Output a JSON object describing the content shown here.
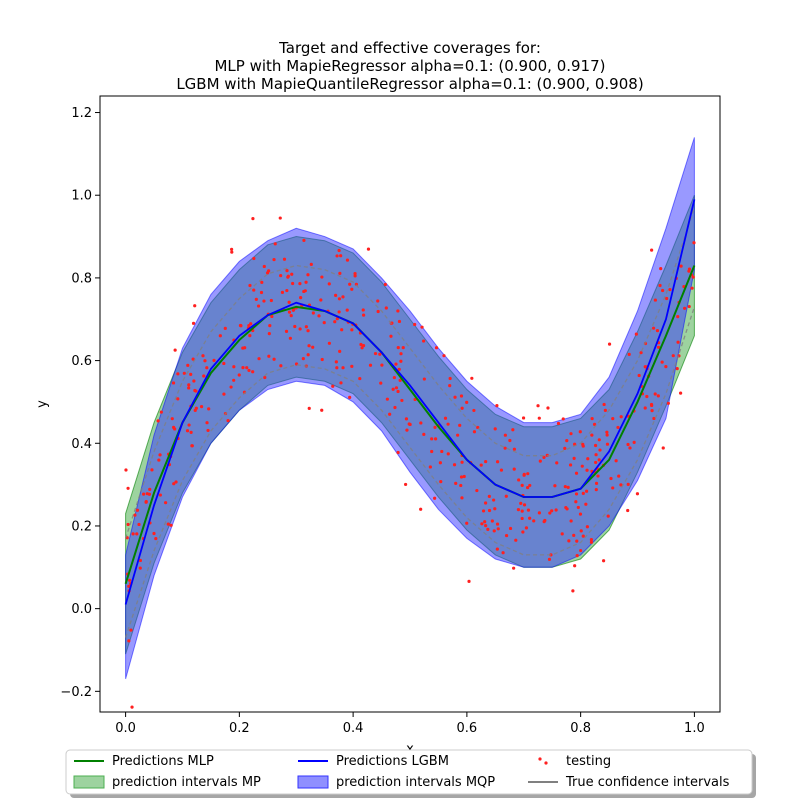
{
  "chart_data": {
    "type": "line",
    "title_lines": [
      "Target and effective coverages for:",
      "MLP with MapieRegressor alpha=0.1: (0.900, 0.917)",
      "LGBM with MapieQuantileRegressor alpha=0.1: (0.900, 0.908)"
    ],
    "xlabel": "x",
    "ylabel": "y",
    "xlim": [
      -0.045,
      1.045
    ],
    "ylim": [
      -0.25,
      1.24
    ],
    "x_ticks": [
      0.0,
      0.2,
      0.4,
      0.6,
      0.8,
      1.0
    ],
    "x_tick_labels": [
      "0.0",
      "0.2",
      "0.4",
      "0.6",
      "0.8",
      "1.0"
    ],
    "y_ticks": [
      -0.2,
      0.0,
      0.2,
      0.4,
      0.6,
      0.8,
      1.0,
      1.2
    ],
    "y_tick_labels": [
      "−0.2",
      "0.0",
      "0.2",
      "0.4",
      "0.6",
      "0.8",
      "1.0",
      "1.2"
    ],
    "grid": false,
    "legend_position": "bottom-center",
    "colors": {
      "mlp": "#008000",
      "lgbm": "#0000ff",
      "mp_band": "#4caf50",
      "mqp_band": "#3333ff",
      "testing": "#ff2020",
      "true_ci": "#808080"
    },
    "legend": [
      {
        "label": "Predictions MLP",
        "kind": "line",
        "color": "#008000"
      },
      {
        "label": "Predictions LGBM",
        "kind": "line",
        "color": "#0000ff"
      },
      {
        "label": "testing",
        "kind": "dots",
        "color": "#ff2020"
      },
      {
        "label": "prediction intervals MP",
        "kind": "patch",
        "color": "#4caf50"
      },
      {
        "label": "prediction intervals MQP",
        "kind": "patch",
        "color": "#3333ff"
      },
      {
        "label": "True confidence intervals",
        "kind": "line",
        "color": "#808080"
      }
    ],
    "series": [
      {
        "name": "Predictions MLP",
        "x": [
          0.0,
          0.05,
          0.1,
          0.15,
          0.2,
          0.25,
          0.3,
          0.35,
          0.4,
          0.45,
          0.5,
          0.55,
          0.6,
          0.65,
          0.7,
          0.75,
          0.8,
          0.85,
          0.9,
          0.95,
          1.0
        ],
        "y": [
          0.06,
          0.28,
          0.45,
          0.57,
          0.65,
          0.71,
          0.73,
          0.72,
          0.69,
          0.62,
          0.53,
          0.44,
          0.36,
          0.3,
          0.27,
          0.27,
          0.29,
          0.36,
          0.5,
          0.66,
          0.83
        ]
      },
      {
        "name": "Predictions LGBM",
        "x": [
          0.0,
          0.05,
          0.1,
          0.15,
          0.2,
          0.25,
          0.3,
          0.35,
          0.4,
          0.45,
          0.5,
          0.55,
          0.6,
          0.65,
          0.7,
          0.75,
          0.8,
          0.85,
          0.9,
          0.95,
          1.0
        ],
        "y": [
          0.01,
          0.25,
          0.45,
          0.58,
          0.66,
          0.71,
          0.74,
          0.72,
          0.69,
          0.62,
          0.54,
          0.45,
          0.36,
          0.3,
          0.27,
          0.27,
          0.29,
          0.38,
          0.52,
          0.7,
          0.99
        ]
      },
      {
        "name": "prediction intervals MP",
        "x": [
          0.0,
          0.05,
          0.1,
          0.15,
          0.2,
          0.25,
          0.3,
          0.35,
          0.4,
          0.45,
          0.5,
          0.55,
          0.6,
          0.65,
          0.7,
          0.75,
          0.8,
          0.85,
          0.9,
          0.95,
          1.0
        ],
        "lower": [
          -0.11,
          0.11,
          0.28,
          0.4,
          0.48,
          0.54,
          0.56,
          0.55,
          0.52,
          0.45,
          0.36,
          0.27,
          0.19,
          0.13,
          0.1,
          0.1,
          0.12,
          0.19,
          0.33,
          0.49,
          0.66
        ],
        "upper": [
          0.23,
          0.45,
          0.62,
          0.74,
          0.82,
          0.88,
          0.9,
          0.89,
          0.86,
          0.79,
          0.7,
          0.61,
          0.53,
          0.47,
          0.44,
          0.44,
          0.46,
          0.53,
          0.67,
          0.83,
          1.0
        ]
      },
      {
        "name": "prediction intervals MQP",
        "x": [
          0.0,
          0.05,
          0.1,
          0.15,
          0.2,
          0.25,
          0.3,
          0.35,
          0.4,
          0.45,
          0.5,
          0.55,
          0.6,
          0.65,
          0.7,
          0.75,
          0.8,
          0.85,
          0.9,
          0.95,
          1.0
        ],
        "lower": [
          -0.17,
          0.08,
          0.27,
          0.4,
          0.48,
          0.53,
          0.55,
          0.54,
          0.5,
          0.43,
          0.33,
          0.24,
          0.17,
          0.12,
          0.1,
          0.1,
          0.13,
          0.2,
          0.31,
          0.46,
          0.82
        ],
        "upper": [
          0.13,
          0.42,
          0.63,
          0.76,
          0.84,
          0.89,
          0.92,
          0.9,
          0.87,
          0.8,
          0.72,
          0.63,
          0.55,
          0.49,
          0.45,
          0.45,
          0.47,
          0.56,
          0.72,
          0.92,
          1.14
        ]
      },
      {
        "name": "True confidence intervals",
        "x": [
          0.0,
          0.05,
          0.1,
          0.15,
          0.2,
          0.25,
          0.3,
          0.35,
          0.4,
          0.45,
          0.5,
          0.55,
          0.6,
          0.65,
          0.7,
          0.75,
          0.8,
          0.85,
          0.9,
          0.95,
          1.0
        ],
        "lower": [
          -0.07,
          0.14,
          0.31,
          0.43,
          0.51,
          0.57,
          0.59,
          0.58,
          0.55,
          0.48,
          0.39,
          0.3,
          0.22,
          0.16,
          0.13,
          0.13,
          0.16,
          0.24,
          0.36,
          0.52,
          0.73
        ],
        "upper": [
          0.17,
          0.38,
          0.55,
          0.67,
          0.75,
          0.81,
          0.83,
          0.82,
          0.79,
          0.72,
          0.63,
          0.54,
          0.46,
          0.4,
          0.37,
          0.37,
          0.4,
          0.48,
          0.6,
          0.76,
          0.97
        ]
      }
    ],
    "testing_points": {
      "name": "testing",
      "count": 500,
      "noise_sd": 0.1,
      "x_range": [
        0.0,
        1.0
      ]
    }
  }
}
